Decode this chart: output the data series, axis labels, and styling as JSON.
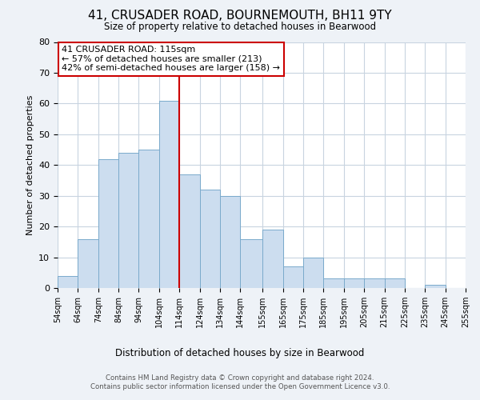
{
  "title": "41, CRUSADER ROAD, BOURNEMOUTH, BH11 9TY",
  "subtitle": "Size of property relative to detached houses in Bearwood",
  "xlabel": "Distribution of detached houses by size in Bearwood",
  "ylabel": "Number of detached properties",
  "bin_edges": [
    54,
    64,
    74,
    84,
    94,
    104,
    114,
    124,
    134,
    144,
    155,
    165,
    175,
    185,
    195,
    205,
    215,
    225,
    235,
    245,
    255
  ],
  "bar_heights": [
    4,
    16,
    42,
    44,
    45,
    61,
    37,
    32,
    30,
    16,
    19,
    7,
    10,
    3,
    3,
    3,
    3,
    0,
    1,
    0
  ],
  "bar_color": "#ccddef",
  "bar_edgecolor": "#7aaacc",
  "vline_x": 114,
  "vline_color": "#cc0000",
  "annotation_title": "41 CRUSADER ROAD: 115sqm",
  "annotation_line1": "← 57% of detached houses are smaller (213)",
  "annotation_line2": "42% of semi-detached houses are larger (158) →",
  "annotation_box_facecolor": "#ffffff",
  "annotation_box_edgecolor": "#cc0000",
  "ylim": [
    0,
    80
  ],
  "yticks": [
    0,
    10,
    20,
    30,
    40,
    50,
    60,
    70,
    80
  ],
  "tick_labels": [
    "54sqm",
    "64sqm",
    "74sqm",
    "84sqm",
    "94sqm",
    "104sqm",
    "114sqm",
    "124sqm",
    "134sqm",
    "144sqm",
    "155sqm",
    "165sqm",
    "175sqm",
    "185sqm",
    "195sqm",
    "205sqm",
    "215sqm",
    "225sqm",
    "235sqm",
    "245sqm",
    "255sqm"
  ],
  "footer_line1": "Contains HM Land Registry data © Crown copyright and database right 2024.",
  "footer_line2": "Contains public sector information licensed under the Open Government Licence v3.0.",
  "background_color": "#eef2f7",
  "plot_background_color": "#ffffff",
  "grid_color": "#c8d4e0"
}
